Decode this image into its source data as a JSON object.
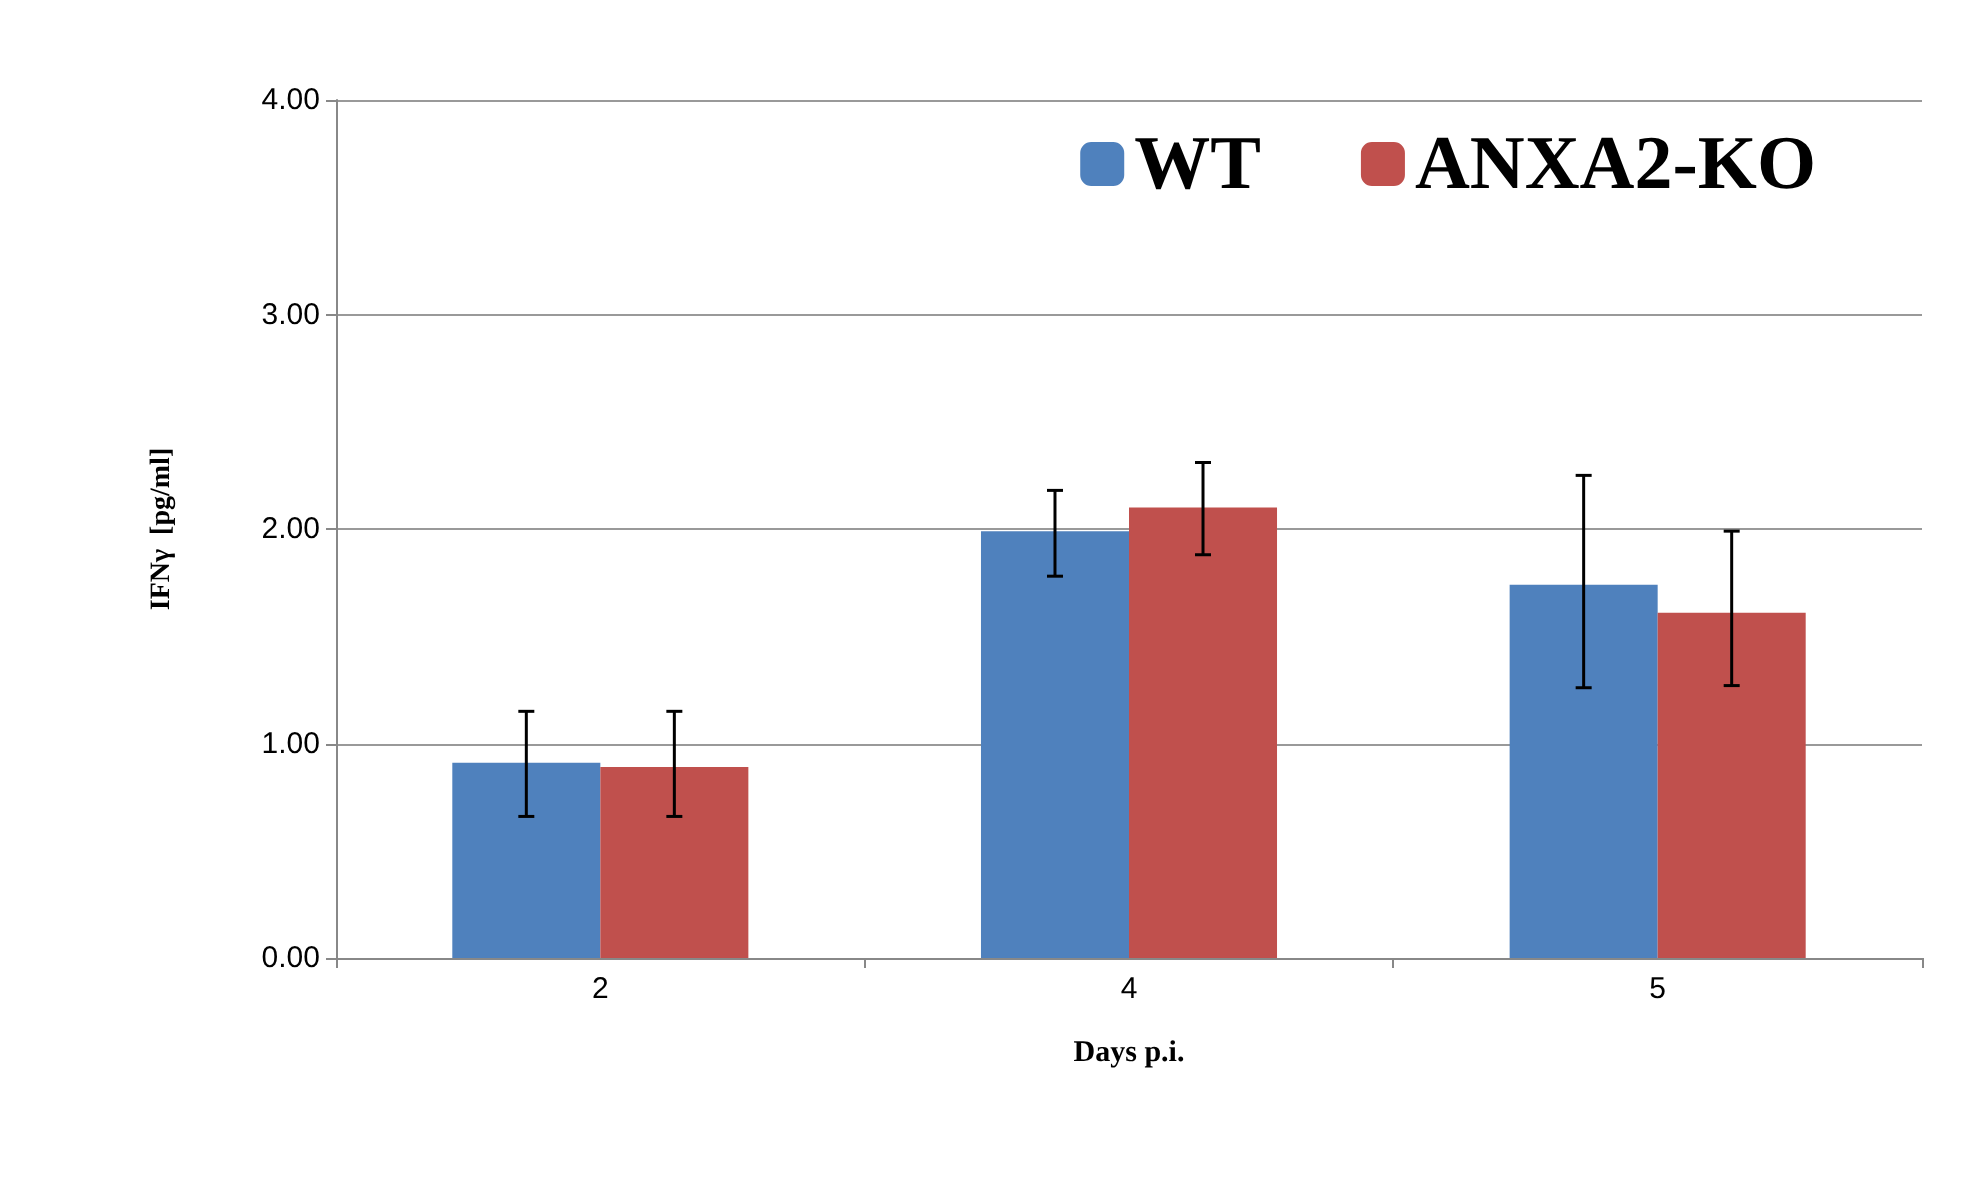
{
  "chart_data": {
    "type": "bar",
    "xlabel": "Days p.i.",
    "ylabel": "IFNγ  [pg/ml]",
    "categories": [
      "2",
      "4",
      "5"
    ],
    "series": [
      {
        "name": "WT",
        "color": "#4f81bd",
        "values": [
          0.91,
          1.99,
          1.74
        ],
        "errors": [
          [
            0.66,
            1.15
          ],
          [
            1.78,
            2.18
          ],
          [
            1.26,
            2.25
          ]
        ]
      },
      {
        "name": "ANXA2-KO",
        "color": "#c0504d",
        "values": [
          0.89,
          2.1,
          1.61
        ],
        "errors": [
          [
            0.66,
            1.15
          ],
          [
            1.88,
            2.31
          ],
          [
            1.27,
            1.99
          ]
        ]
      }
    ],
    "ylim": [
      0,
      4
    ],
    "yticks": [
      {
        "value": 0,
        "label": "0.00"
      },
      {
        "value": 1,
        "label": "1.00"
      },
      {
        "value": 2,
        "label": "2.00"
      },
      {
        "value": 3,
        "label": "3.00"
      },
      {
        "value": 4,
        "label": "4.00"
      }
    ],
    "grid": "y",
    "legend": "top right"
  }
}
